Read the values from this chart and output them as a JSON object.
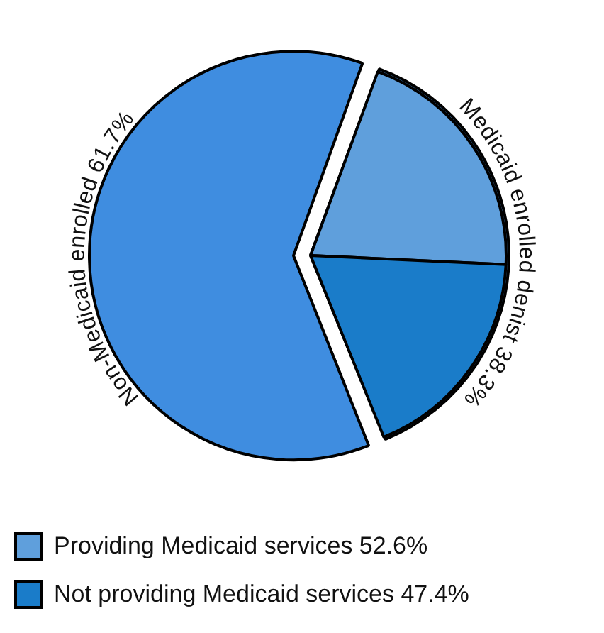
{
  "chart_data": [
    {
      "type": "pie",
      "categories": [
        "Non-Medicaid enrolled",
        "Medicaid enrolled denist"
      ],
      "values": [
        61.7,
        38.3
      ],
      "value_labels": [
        "61.7%",
        "38.3%"
      ],
      "colors": [
        "#3f8de0",
        "#4a93dc"
      ]
    },
    {
      "type": "pie",
      "categories": [
        "Providing Medicaid services",
        "Not providing Medicaid services"
      ],
      "values": [
        52.6,
        47.4
      ],
      "value_labels": [
        "52.6%",
        "47.4%"
      ],
      "colors": [
        "#5f9fdc",
        "#1a7cc9"
      ],
      "legend": "bottom"
    }
  ]
}
